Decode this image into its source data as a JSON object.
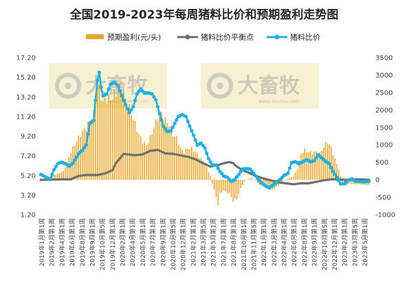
{
  "chart_data": {
    "type": "bar+line",
    "title": "全国2019-2023年每周猪料比价和预期盈利走势图",
    "left_axis": {
      "min": 1.2,
      "max": 17.2,
      "ticks": [
        "17.20",
        "15.20",
        "13.20",
        "11.20",
        "9.20",
        "7.20",
        "5.20",
        "3.20",
        "1.20"
      ]
    },
    "right_axis": {
      "min": -1000,
      "max": 3500,
      "ticks": [
        "3500",
        "3000",
        "2500",
        "2000",
        "1500",
        "1000",
        "500",
        "0",
        "-500",
        "-1000"
      ]
    },
    "x_labels": [
      "2019年1月第1周",
      "2019年2月第1周",
      "2019年4月第1周",
      "2019年6月第1周",
      "2019年8月第1周",
      "2019年9月第1周",
      "2019年10月第5周",
      "2019年12月第1周",
      "2020年2月第1周",
      "2020年4月第1周",
      "2020年5月第1周",
      "2020年7月第1周",
      "2020年9月第1周",
      "2020年10月第5周",
      "2020年12月第1周",
      "2021年2月第1周",
      "2021年3月第5周",
      "2021年5月第1周",
      "2021年7月第1周",
      "2021年8月第1周",
      "2021年10月第1周",
      "2021年11月第5周",
      "2022年1月第1周",
      "2022年3月第1周",
      "2022年4月第1周",
      "2022年6月第1周",
      "2022年8月第1周",
      "2022年9月第1周",
      "2022年10月第5周",
      "2022年12月第1周",
      "2023年2月第1周",
      "2023年3月第5周",
      "2023年5月第1周"
    ],
    "legend": [
      {
        "name": "预期盈利(元/头)",
        "color": "#e8a425",
        "kind": "bar"
      },
      {
        "name": "猪料比价平衡点",
        "color": "#6e6e6e",
        "kind": "line"
      },
      {
        "name": "猪料比价",
        "color": "#1fb1e6",
        "kind": "line"
      }
    ],
    "watermark": {
      "brand": "大畜牧",
      "url": "www.dxumu.com"
    },
    "anchors": {
      "profit": [
        [
          0,
          10
        ],
        [
          8,
          150
        ],
        [
          12,
          250
        ],
        [
          14,
          500
        ],
        [
          16,
          800
        ],
        [
          18,
          1000
        ],
        [
          21,
          1300
        ],
        [
          24,
          1500
        ],
        [
          28,
          1900
        ],
        [
          30,
          2700
        ],
        [
          31,
          2600
        ],
        [
          33,
          2200
        ],
        [
          34,
          2300
        ],
        [
          37,
          2300
        ],
        [
          40,
          2500
        ],
        [
          42,
          2700
        ],
        [
          44,
          2400
        ],
        [
          46,
          2200
        ],
        [
          48,
          1900
        ],
        [
          50,
          1600
        ],
        [
          52,
          1300
        ],
        [
          54,
          1100
        ],
        [
          56,
          1000
        ],
        [
          58,
          1200
        ],
        [
          60,
          1500
        ],
        [
          62,
          1800
        ],
        [
          64,
          1900
        ],
        [
          66,
          1700
        ],
        [
          68,
          1600
        ],
        [
          70,
          1300
        ],
        [
          72,
          1200
        ],
        [
          74,
          900
        ],
        [
          76,
          800
        ],
        [
          78,
          900
        ],
        [
          80,
          900
        ],
        [
          82,
          800
        ],
        [
          84,
          650
        ],
        [
          86,
          550
        ],
        [
          88,
          350
        ],
        [
          90,
          100
        ],
        [
          91,
          -100
        ],
        [
          92,
          -300
        ],
        [
          93,
          -500
        ],
        [
          94,
          -700
        ],
        [
          95,
          -400
        ],
        [
          97,
          -300
        ],
        [
          100,
          -400
        ],
        [
          102,
          -600
        ],
        [
          104,
          -550
        ],
        [
          106,
          -250
        ],
        [
          108,
          -50
        ],
        [
          110,
          20
        ],
        [
          112,
          60
        ],
        [
          114,
          -30
        ],
        [
          116,
          -150
        ],
        [
          118,
          -130
        ],
        [
          120,
          -180
        ],
        [
          122,
          -300
        ],
        [
          124,
          -250
        ],
        [
          126,
          -170
        ],
        [
          128,
          -50
        ],
        [
          130,
          0
        ],
        [
          132,
          50
        ],
        [
          134,
          100
        ],
        [
          136,
          300
        ],
        [
          138,
          750
        ],
        [
          140,
          850
        ],
        [
          142,
          800
        ],
        [
          144,
          780
        ],
        [
          146,
          800
        ],
        [
          148,
          750
        ],
        [
          150,
          950
        ],
        [
          152,
          1100
        ],
        [
          154,
          900
        ],
        [
          156,
          600
        ],
        [
          158,
          300
        ],
        [
          160,
          -100
        ],
        [
          162,
          -150
        ],
        [
          164,
          -100
        ],
        [
          166,
          -130
        ],
        [
          168,
          -120
        ],
        [
          170,
          -140
        ],
        [
          172,
          -150
        ],
        [
          174,
          -150
        ]
      ],
      "breakeven": [
        [
          0,
          4.75
        ],
        [
          10,
          4.8
        ],
        [
          16,
          4.8
        ],
        [
          20,
          5.15
        ],
        [
          24,
          5.25
        ],
        [
          30,
          5.25
        ],
        [
          34,
          5.4
        ],
        [
          38,
          5.75
        ],
        [
          40,
          6.5
        ],
        [
          44,
          7.4
        ],
        [
          50,
          7.25
        ],
        [
          54,
          7.35
        ],
        [
          58,
          7.7
        ],
        [
          62,
          7.8
        ],
        [
          66,
          7.45
        ],
        [
          70,
          7.4
        ],
        [
          74,
          7.25
        ],
        [
          78,
          7.1
        ],
        [
          82,
          6.85
        ],
        [
          86,
          6.45
        ],
        [
          90,
          6.1
        ],
        [
          94,
          6.25
        ],
        [
          98,
          6.5
        ],
        [
          100,
          6.55
        ],
        [
          102,
          6.45
        ],
        [
          104,
          6.1
        ],
        [
          106,
          5.85
        ],
        [
          108,
          5.65
        ],
        [
          110,
          5.5
        ],
        [
          114,
          5.15
        ],
        [
          118,
          4.9
        ],
        [
          122,
          4.7
        ],
        [
          126,
          4.5
        ],
        [
          130,
          4.4
        ],
        [
          134,
          4.3
        ],
        [
          138,
          4.4
        ],
        [
          142,
          4.4
        ],
        [
          146,
          4.55
        ],
        [
          150,
          4.7
        ],
        [
          154,
          4.8
        ],
        [
          158,
          4.8
        ],
        [
          162,
          4.75
        ],
        [
          166,
          4.8
        ],
        [
          170,
          4.8
        ],
        [
          174,
          4.75
        ]
      ],
      "ratio": [
        [
          0,
          5.3
        ],
        [
          3,
          5.0
        ],
        [
          5,
          4.8
        ],
        [
          7,
          5.8
        ],
        [
          9,
          6.4
        ],
        [
          11,
          6.55
        ],
        [
          13,
          6.4
        ],
        [
          15,
          6.15
        ],
        [
          17,
          6.45
        ],
        [
          20,
          7.4
        ],
        [
          22,
          7.75
        ],
        [
          24,
          8.3
        ],
        [
          26,
          10.5
        ],
        [
          28,
          10.8
        ],
        [
          30,
          14.9
        ],
        [
          31,
          15.7
        ],
        [
          32,
          14.2
        ],
        [
          33,
          13.3
        ],
        [
          35,
          13.5
        ],
        [
          37,
          14.5
        ],
        [
          39,
          14.7
        ],
        [
          41,
          14.3
        ],
        [
          43,
          13.3
        ],
        [
          45,
          12.4
        ],
        [
          47,
          11.6
        ],
        [
          49,
          12.2
        ],
        [
          51,
          13.5
        ],
        [
          53,
          14.0
        ],
        [
          55,
          13.6
        ],
        [
          57,
          13.6
        ],
        [
          59,
          13.5
        ],
        [
          61,
          12.9
        ],
        [
          63,
          11.5
        ],
        [
          65,
          10.2
        ],
        [
          67,
          9.7
        ],
        [
          69,
          9.7
        ],
        [
          71,
          10.5
        ],
        [
          73,
          11.2
        ],
        [
          75,
          11.4
        ],
        [
          77,
          11.2
        ],
        [
          79,
          10.2
        ],
        [
          81,
          9.3
        ],
        [
          83,
          8.3
        ],
        [
          85,
          8.5
        ],
        [
          87,
          8.0
        ],
        [
          89,
          6.9
        ],
        [
          91,
          6.25
        ],
        [
          93,
          6.25
        ],
        [
          95,
          5.6
        ],
        [
          97,
          5.15
        ],
        [
          99,
          5.0
        ],
        [
          101,
          4.6
        ],
        [
          103,
          4.8
        ],
        [
          105,
          5.3
        ],
        [
          107,
          5.85
        ],
        [
          109,
          5.9
        ],
        [
          111,
          5.85
        ],
        [
          113,
          5.4
        ],
        [
          115,
          4.9
        ],
        [
          117,
          4.45
        ],
        [
          119,
          4.15
        ],
        [
          121,
          3.95
        ],
        [
          123,
          4.2
        ],
        [
          125,
          4.5
        ],
        [
          127,
          4.8
        ],
        [
          129,
          5.2
        ],
        [
          131,
          5.4
        ],
        [
          133,
          6.5
        ],
        [
          135,
          6.6
        ],
        [
          137,
          6.4
        ],
        [
          139,
          6.6
        ],
        [
          141,
          6.8
        ],
        [
          143,
          6.6
        ],
        [
          145,
          6.7
        ],
        [
          147,
          7.3
        ],
        [
          149,
          7.0
        ],
        [
          151,
          6.65
        ],
        [
          153,
          6.4
        ],
        [
          155,
          5.6
        ],
        [
          157,
          5.0
        ],
        [
          159,
          4.35
        ],
        [
          161,
          4.35
        ],
        [
          163,
          4.7
        ],
        [
          165,
          4.85
        ],
        [
          167,
          4.6
        ],
        [
          169,
          4.6
        ],
        [
          171,
          4.55
        ],
        [
          173,
          4.6
        ],
        [
          174,
          4.6
        ]
      ]
    }
  }
}
